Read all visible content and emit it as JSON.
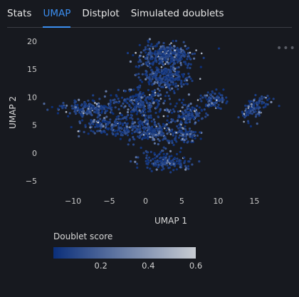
{
  "tabs": [
    {
      "label": "Stats",
      "active": false
    },
    {
      "label": "UMAP",
      "active": true
    },
    {
      "label": "Distplot",
      "active": false
    },
    {
      "label": "Simulated doublets",
      "active": false
    }
  ],
  "menu_icon": "more-horizontal-icon",
  "colors": {
    "accent": "#3b8ef0",
    "scale_low": "#0b2f7a",
    "scale_high": "#c8ccd2"
  },
  "chart_data": {
    "type": "scatter",
    "xlabel": "UMAP 1",
    "ylabel": "UMAP 2",
    "xlim": [
      -13,
      18.5
    ],
    "ylim": [
      -6.5,
      21
    ],
    "xticks": [
      -10,
      -5,
      0,
      5,
      10,
      15
    ],
    "yticks": [
      -5,
      0,
      5,
      10,
      15,
      20
    ],
    "grid": false,
    "colorbar": {
      "title": "Doublet score",
      "range": [
        0.0,
        0.6
      ],
      "ticks": [
        0.2,
        0.4,
        0.6
      ],
      "colormap": "blues"
    },
    "clusters": [
      {
        "cx": 3.0,
        "cy": 17.5,
        "sx": 3.7,
        "sy": 2.0,
        "n": 330
      },
      {
        "cx": 2.5,
        "cy": 13.5,
        "sx": 3.2,
        "sy": 2.2,
        "n": 260
      },
      {
        "cx": -0.5,
        "cy": 9.0,
        "sx": 3.2,
        "sy": 2.2,
        "n": 240
      },
      {
        "cx": -8.0,
        "cy": 8.0,
        "sx": 3.2,
        "sy": 1.3,
        "n": 180
      },
      {
        "cx": -5.0,
        "cy": 5.0,
        "sx": 4.0,
        "sy": 1.8,
        "n": 200
      },
      {
        "cx": 1.0,
        "cy": 4.0,
        "sx": 3.5,
        "sy": 2.2,
        "n": 230
      },
      {
        "cx": 6.0,
        "cy": 7.0,
        "sx": 2.2,
        "sy": 1.5,
        "n": 120
      },
      {
        "cx": 9.5,
        "cy": 9.5,
        "sx": 1.6,
        "sy": 1.4,
        "n": 90
      },
      {
        "cx": 5.5,
        "cy": 3.0,
        "sx": 1.8,
        "sy": 1.2,
        "n": 80
      },
      {
        "cx": 2.5,
        "cy": -1.5,
        "sx": 3.0,
        "sy": 1.6,
        "n": 150
      },
      {
        "cx": 15.0,
        "cy": 8.0,
        "sx": 1.3,
        "sy": 2.5,
        "n": 110,
        "rot": -0.8
      }
    ]
  },
  "page": {
    "width": 420,
    "height": 417
  }
}
